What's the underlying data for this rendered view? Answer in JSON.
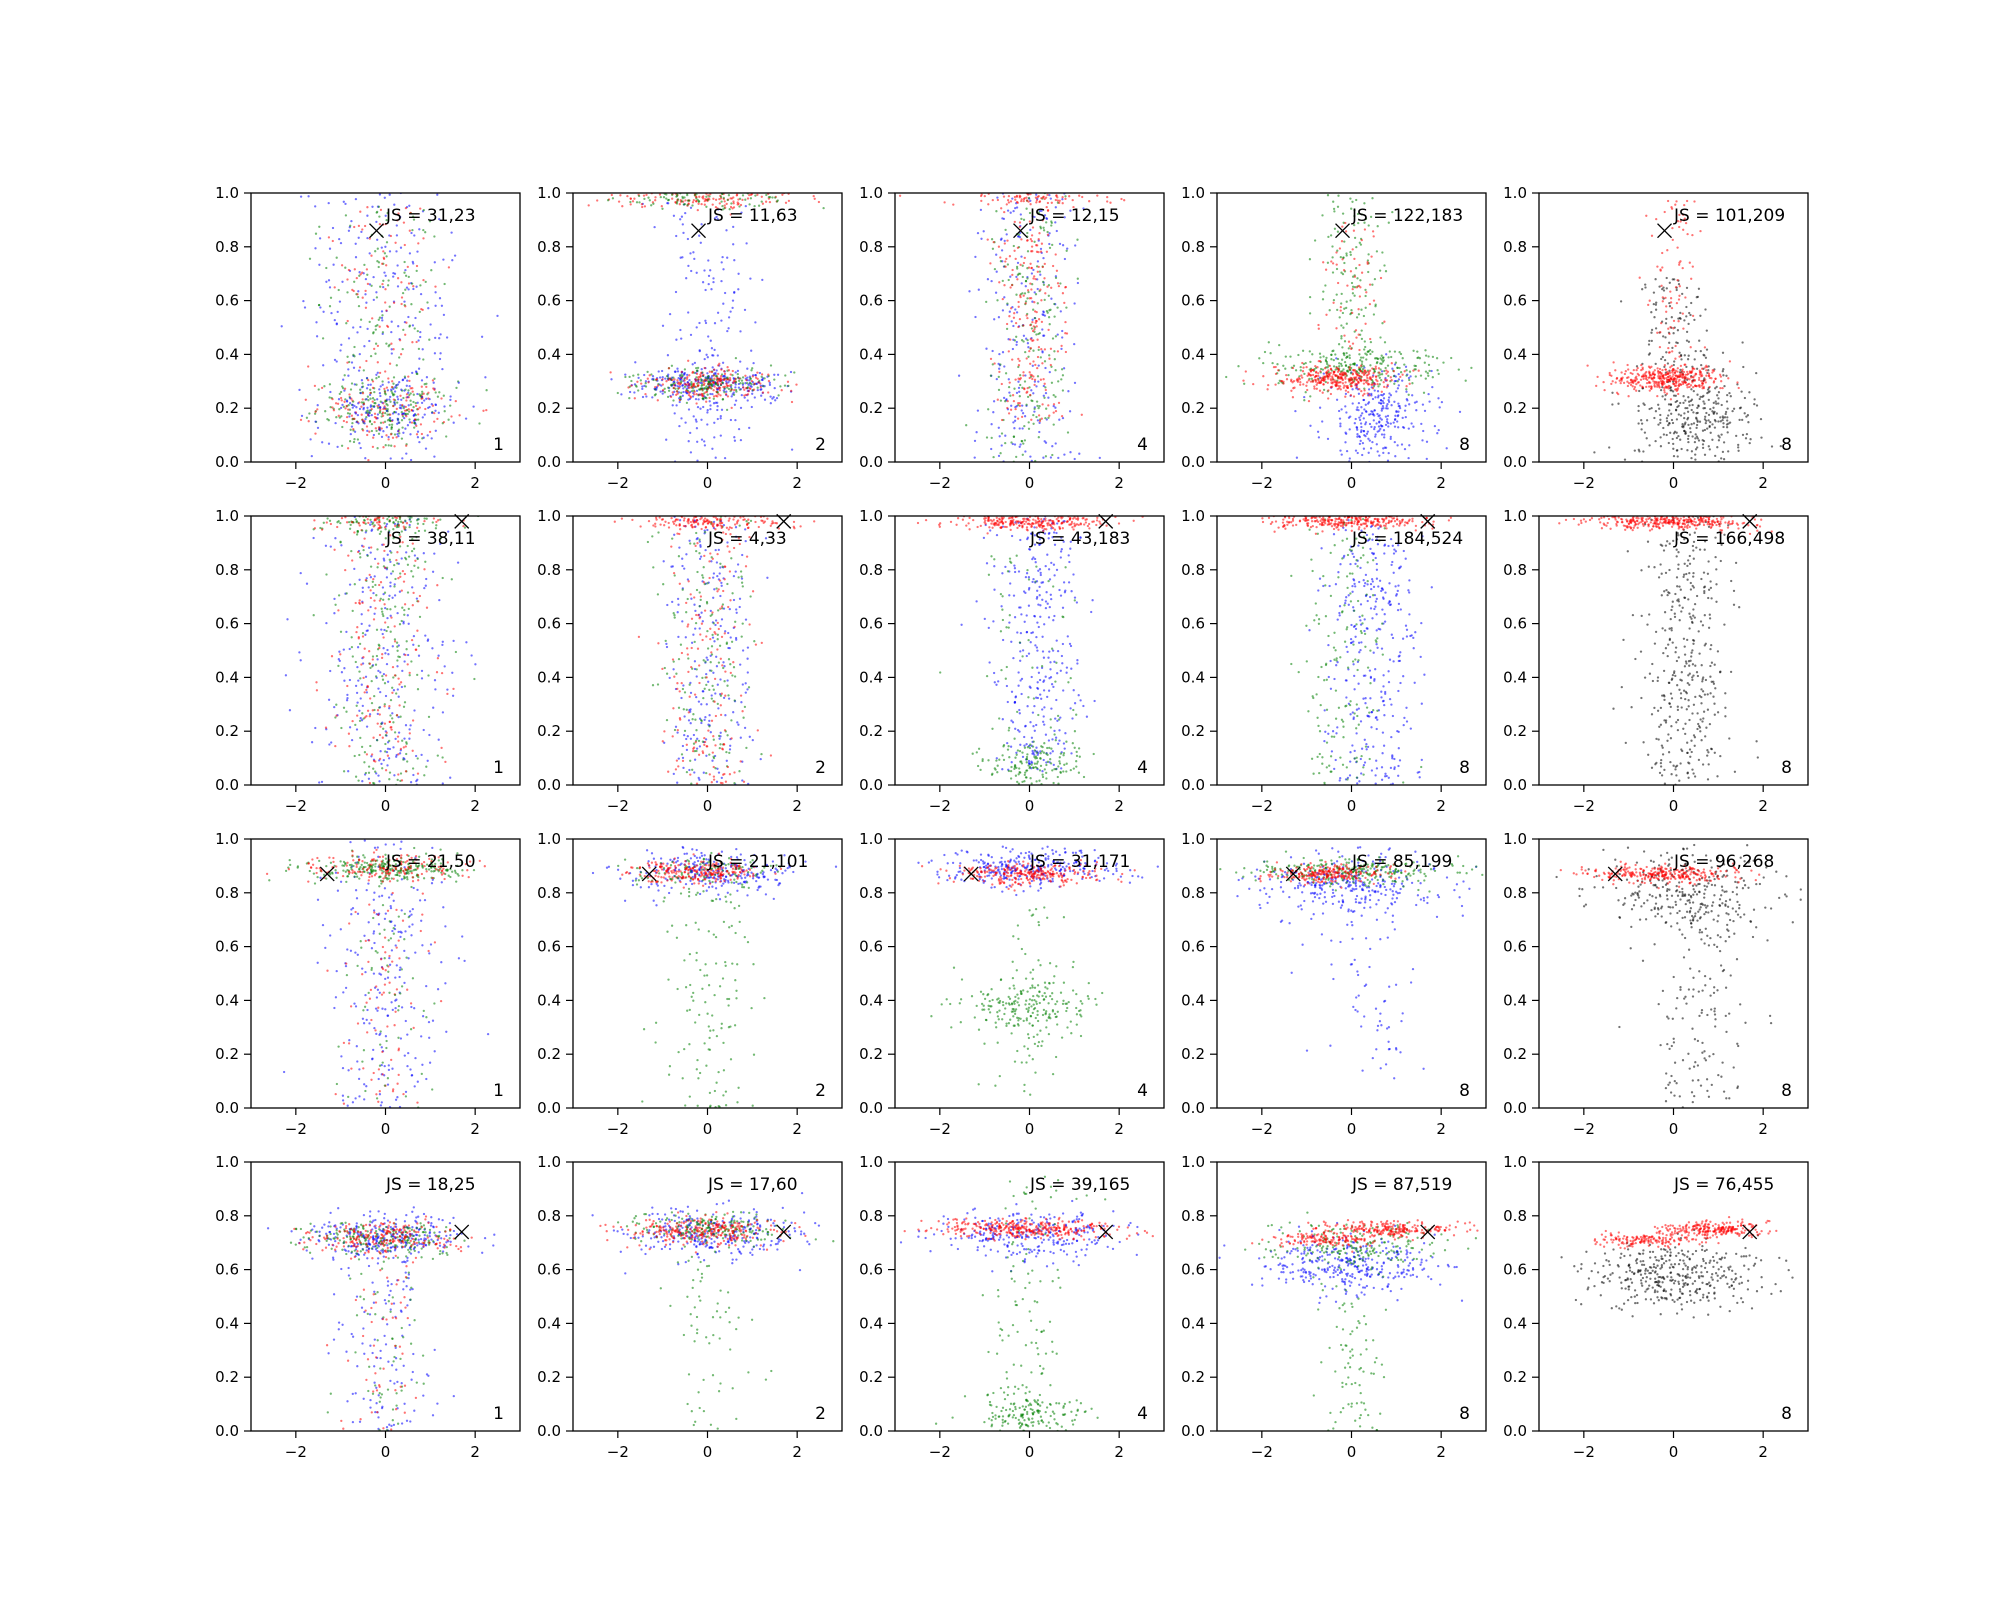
{
  "chart_data": {
    "type": "scatter",
    "grid": false,
    "legend": false,
    "rows": 4,
    "cols": 5,
    "xlim": [
      -3,
      3
    ],
    "ylim": [
      0,
      1
    ],
    "x_ticks": [
      -2,
      0,
      2
    ],
    "y_ticks": [
      0.0,
      0.2,
      0.4,
      0.6,
      0.8,
      1.0
    ],
    "x_tick_labels": [
      "−2",
      "0",
      "2"
    ],
    "y_tick_labels": [
      "0.0",
      "0.2",
      "0.4",
      "0.6",
      "0.8",
      "1.0"
    ],
    "colors": {
      "blue": "#0000ff",
      "green": "#008000",
      "red": "#ff0000",
      "black": "#000000"
    },
    "panels": [
      {
        "row": 0,
        "col": 0,
        "js_label": "JS = 31,23",
        "count_label": "1",
        "marker": {
          "x": -0.2,
          "y": 0.86
        },
        "clusters": [
          {
            "color": "blue",
            "n": 230,
            "cx": 0,
            "sx": 0.9,
            "ymin": 0.0,
            "ymax": 1.0
          },
          {
            "color": "green",
            "n": 160,
            "cx": 0,
            "sx": 0.6,
            "ymin": 0.05,
            "ymax": 0.95
          },
          {
            "color": "red",
            "n": 130,
            "cx": 0,
            "sx": 0.6,
            "ymin": 0.05,
            "ymax": 0.95
          },
          {
            "color": "green",
            "n": 160,
            "cx": 0,
            "sx": 0.75,
            "cy": 0.2,
            "sy": 0.05
          },
          {
            "color": "red",
            "n": 110,
            "cx": 0,
            "sx": 0.75,
            "cy": 0.2,
            "sy": 0.05
          },
          {
            "color": "blue",
            "n": 130,
            "cx": 0,
            "sx": 0.8,
            "cy": 0.2,
            "sy": 0.06
          }
        ]
      },
      {
        "row": 0,
        "col": 1,
        "js_label": "JS = 11,63",
        "count_label": "2",
        "marker": {
          "x": -0.2,
          "y": 0.86
        },
        "clusters": [
          {
            "color": "blue",
            "n": 170,
            "cx": 0,
            "sx": 0.55,
            "ymin": 0.0,
            "ymax": 1.0
          },
          {
            "color": "blue",
            "n": 260,
            "cx": 0,
            "sx": 0.9,
            "cy": 0.29,
            "sy": 0.035
          },
          {
            "color": "green",
            "n": 200,
            "cx": 0,
            "sx": 0.75,
            "cy": 0.29,
            "sy": 0.03
          },
          {
            "color": "red",
            "n": 200,
            "cx": 0,
            "sx": 0.75,
            "cy": 0.29,
            "sy": 0.03
          },
          {
            "color": "red",
            "n": 150,
            "cx": 0,
            "sx": 1.0,
            "cy": 0.98,
            "sy": 0.02
          },
          {
            "color": "green",
            "n": 100,
            "cx": 0,
            "sx": 0.9,
            "cy": 0.98,
            "sy": 0.02
          }
        ]
      },
      {
        "row": 0,
        "col": 2,
        "js_label": "JS = 12,15",
        "count_label": "4",
        "marker": {
          "x": -0.2,
          "y": 0.86
        },
        "clusters": [
          {
            "color": "blue",
            "n": 230,
            "cx": 0,
            "sx": 0.6,
            "ymin": 0.0,
            "ymax": 1.0
          },
          {
            "color": "green",
            "n": 200,
            "cx": 0,
            "sx": 0.45,
            "ymin": 0.0,
            "ymax": 1.0
          },
          {
            "color": "red",
            "n": 200,
            "cx": 0,
            "sx": 0.4,
            "ymin": 0.15,
            "ymax": 0.9
          },
          {
            "color": "red",
            "n": 100,
            "cx": 0,
            "sx": 0.9,
            "cy": 0.98,
            "sy": 0.02
          }
        ]
      },
      {
        "row": 0,
        "col": 3,
        "js_label": "JS = 122,183",
        "count_label": "8",
        "marker": {
          "x": -0.2,
          "y": 0.86
        },
        "clusters": [
          {
            "color": "blue",
            "n": 280,
            "cx": 0.6,
            "sx": 0.6,
            "cy": 0.17,
            "sy": 0.09
          },
          {
            "color": "green",
            "n": 130,
            "cx": 0,
            "sx": 0.4,
            "ymin": 0.4,
            "ymax": 1.0
          },
          {
            "color": "green",
            "n": 260,
            "cx": 0,
            "sx": 0.9,
            "cy": 0.35,
            "sy": 0.04
          },
          {
            "color": "red",
            "n": 330,
            "cx": -0.3,
            "sx": 0.6,
            "cy": 0.31,
            "sy": 0.025
          },
          {
            "color": "red",
            "n": 60,
            "cx": 0,
            "sx": 0.3,
            "ymin": 0.4,
            "ymax": 0.9
          }
        ]
      },
      {
        "row": 0,
        "col": 4,
        "js_label": "JS = 101,209",
        "count_label": "8",
        "marker": {
          "x": -0.2,
          "y": 0.86
        },
        "clusters": [
          {
            "color": "black",
            "n": 330,
            "cx": 0.5,
            "sx": 0.7,
            "cy": 0.17,
            "sy": 0.09
          },
          {
            "color": "black",
            "n": 100,
            "cx": 0,
            "sx": 0.4,
            "ymin": 0.35,
            "ymax": 0.7
          },
          {
            "color": "red",
            "n": 380,
            "cx": -0.2,
            "sx": 0.6,
            "cy": 0.31,
            "sy": 0.025
          },
          {
            "color": "red",
            "n": 80,
            "cx": 0,
            "sx": 0.3,
            "ymin": 0.4,
            "ymax": 1.0
          }
        ]
      },
      {
        "row": 1,
        "col": 0,
        "js_label": "JS = 38,11",
        "count_label": "1",
        "marker": {
          "x": 1.7,
          "y": 0.98
        },
        "clusters": [
          {
            "color": "blue",
            "n": 260,
            "cx": 0,
            "sx": 0.8,
            "ymin": 0.0,
            "ymax": 1.0
          },
          {
            "color": "green",
            "n": 200,
            "cx": 0,
            "sx": 0.6,
            "ymin": 0.0,
            "ymax": 1.0
          },
          {
            "color": "red",
            "n": 160,
            "cx": 0,
            "sx": 0.55,
            "ymin": 0.0,
            "ymax": 1.0
          },
          {
            "color": "green",
            "n": 100,
            "cx": 0,
            "sx": 0.8,
            "cy": 0.98,
            "sy": 0.02
          },
          {
            "color": "red",
            "n": 60,
            "cx": 0,
            "sx": 0.8,
            "cy": 0.98,
            "sy": 0.02
          }
        ]
      },
      {
        "row": 1,
        "col": 1,
        "js_label": "JS = 4,33",
        "count_label": "2",
        "marker": {
          "x": 1.7,
          "y": 0.98
        },
        "clusters": [
          {
            "color": "blue",
            "n": 230,
            "cx": 0,
            "sx": 0.6,
            "ymin": 0.0,
            "ymax": 1.0
          },
          {
            "color": "green",
            "n": 170,
            "cx": 0,
            "sx": 0.5,
            "ymin": 0.0,
            "ymax": 1.0
          },
          {
            "color": "red",
            "n": 170,
            "cx": 0,
            "sx": 0.5,
            "ymin": 0.0,
            "ymax": 1.0
          },
          {
            "color": "red",
            "n": 150,
            "cx": 0,
            "sx": 0.9,
            "cy": 0.98,
            "sy": 0.015
          }
        ]
      },
      {
        "row": 1,
        "col": 2,
        "js_label": "JS = 43,183",
        "count_label": "4",
        "marker": {
          "x": 1.7,
          "y": 0.98
        },
        "clusters": [
          {
            "color": "blue",
            "n": 330,
            "cx": 0.2,
            "sx": 0.5,
            "ymin": 0.05,
            "ymax": 1.0
          },
          {
            "color": "green",
            "n": 160,
            "cx": 0,
            "sx": 0.6,
            "cy": 0.07,
            "sy": 0.05
          },
          {
            "color": "green",
            "n": 60,
            "cx": 0,
            "sx": 0.6,
            "ymin": 0.1,
            "ymax": 1.0
          },
          {
            "color": "red",
            "n": 260,
            "cx": 0,
            "sx": 0.9,
            "cy": 0.98,
            "sy": 0.015
          }
        ]
      },
      {
        "row": 1,
        "col": 3,
        "js_label": "JS = 184,524",
        "count_label": "8",
        "marker": {
          "x": 1.7,
          "y": 0.98
        },
        "clusters": [
          {
            "color": "blue",
            "n": 330,
            "cx": 0.5,
            "sx": 0.5,
            "ymin": 0.0,
            "ymax": 1.0
          },
          {
            "color": "green",
            "n": 160,
            "cx": -0.2,
            "sx": 0.5,
            "ymin": 0.0,
            "ymax": 1.0
          },
          {
            "color": "red",
            "n": 300,
            "cx": 0,
            "sx": 0.9,
            "cy": 0.98,
            "sy": 0.015
          }
        ]
      },
      {
        "row": 1,
        "col": 4,
        "js_label": "JS = 166,498",
        "count_label": "8",
        "marker": {
          "x": 1.7,
          "y": 0.98
        },
        "clusters": [
          {
            "color": "black",
            "n": 380,
            "cx": 0.3,
            "sx": 0.5,
            "ymin": 0.0,
            "ymax": 1.0
          },
          {
            "color": "red",
            "n": 330,
            "cx": 0,
            "sx": 0.9,
            "cy": 0.98,
            "sy": 0.015
          }
        ]
      },
      {
        "row": 2,
        "col": 0,
        "js_label": "JS = 21,50",
        "count_label": "1",
        "marker": {
          "x": -1.3,
          "y": 0.87
        },
        "clusters": [
          {
            "color": "blue",
            "n": 230,
            "cx": 0,
            "sx": 0.7,
            "ymin": 0.0,
            "ymax": 1.0
          },
          {
            "color": "green",
            "n": 260,
            "cx": 0,
            "sx": 0.9,
            "cy": 0.89,
            "sy": 0.025
          },
          {
            "color": "red",
            "n": 160,
            "cx": 0,
            "sx": 0.9,
            "cy": 0.89,
            "sy": 0.025
          },
          {
            "color": "red",
            "n": 80,
            "cx": 0,
            "sx": 0.5,
            "ymin": 0.0,
            "ymax": 0.8
          },
          {
            "color": "green",
            "n": 60,
            "cx": 0,
            "sx": 0.5,
            "ymin": 0.0,
            "ymax": 0.8
          }
        ]
      },
      {
        "row": 2,
        "col": 1,
        "js_label": "JS = 21,101",
        "count_label": "2",
        "marker": {
          "x": -1.3,
          "y": 0.87
        },
        "clusters": [
          {
            "color": "blue",
            "n": 260,
            "cx": 0,
            "sx": 0.9,
            "cy": 0.88,
            "sy": 0.04
          },
          {
            "color": "green",
            "n": 130,
            "cx": 0,
            "sx": 0.5,
            "ymin": 0.0,
            "ymax": 0.85
          },
          {
            "color": "green",
            "n": 100,
            "cx": 0,
            "sx": 0.8,
            "cy": 0.88,
            "sy": 0.025
          },
          {
            "color": "red",
            "n": 230,
            "cx": -0.3,
            "sx": 0.7,
            "cy": 0.88,
            "sy": 0.02
          }
        ]
      },
      {
        "row": 2,
        "col": 2,
        "js_label": "JS = 31,171",
        "count_label": "4",
        "marker": {
          "x": -1.3,
          "y": 0.87
        },
        "clusters": [
          {
            "color": "blue",
            "n": 300,
            "cx": 0,
            "sx": 1.0,
            "cy": 0.89,
            "sy": 0.035
          },
          {
            "color": "green",
            "n": 200,
            "cx": 0,
            "sx": 0.7,
            "cy": 0.38,
            "sy": 0.06
          },
          {
            "color": "green",
            "n": 60,
            "cx": 0,
            "sx": 0.4,
            "ymin": 0.0,
            "ymax": 0.8
          },
          {
            "color": "red",
            "n": 260,
            "cx": 0,
            "sx": 0.8,
            "cy": 0.87,
            "sy": 0.02
          }
        ]
      },
      {
        "row": 2,
        "col": 3,
        "js_label": "JS = 85,199",
        "count_label": "8",
        "marker": {
          "x": -1.3,
          "y": 0.87
        },
        "clusters": [
          {
            "color": "blue",
            "n": 300,
            "cx": 0,
            "sx": 1.0,
            "cy": 0.83,
            "sy": 0.06
          },
          {
            "color": "blue",
            "n": 60,
            "cx": 0.5,
            "sx": 0.5,
            "ymin": 0.1,
            "ymax": 0.7
          },
          {
            "color": "green",
            "n": 260,
            "cx": 0,
            "sx": 1.1,
            "cy": 0.88,
            "sy": 0.025
          },
          {
            "color": "red",
            "n": 230,
            "cx": -0.5,
            "sx": 0.6,
            "cy": 0.87,
            "sy": 0.015
          }
        ]
      },
      {
        "row": 2,
        "col": 4,
        "js_label": "JS = 96,268",
        "count_label": "8",
        "marker": {
          "x": -1.3,
          "y": 0.87
        },
        "clusters": [
          {
            "color": "black",
            "n": 300,
            "cx": 0.3,
            "sx": 1.0,
            "cy": 0.8,
            "sy": 0.08
          },
          {
            "color": "black",
            "n": 130,
            "cx": 0.5,
            "sx": 0.6,
            "ymin": 0.0,
            "ymax": 0.7
          },
          {
            "color": "red",
            "n": 280,
            "cx": -0.3,
            "sx": 0.8,
            "cy": 0.87,
            "sy": 0.015
          }
        ]
      },
      {
        "row": 3,
        "col": 0,
        "js_label": "JS = 18,25",
        "count_label": "1",
        "marker": {
          "x": 1.7,
          "y": 0.74
        },
        "clusters": [
          {
            "color": "blue",
            "n": 260,
            "cx": 0,
            "sx": 0.9,
            "cy": 0.72,
            "sy": 0.04
          },
          {
            "color": "blue",
            "n": 130,
            "cx": 0,
            "sx": 0.6,
            "ymin": 0.0,
            "ymax": 0.7
          },
          {
            "color": "green",
            "n": 200,
            "cx": 0,
            "sx": 0.8,
            "cy": 0.72,
            "sy": 0.03
          },
          {
            "color": "green",
            "n": 60,
            "cx": 0,
            "sx": 0.5,
            "ymin": 0.0,
            "ymax": 0.7
          },
          {
            "color": "red",
            "n": 200,
            "cx": 0,
            "sx": 0.8,
            "cy": 0.72,
            "sy": 0.03
          },
          {
            "color": "red",
            "n": 60,
            "cx": 0,
            "sx": 0.5,
            "ymin": 0.0,
            "ymax": 0.7
          }
        ]
      },
      {
        "row": 3,
        "col": 1,
        "js_label": "JS = 17,60",
        "count_label": "2",
        "marker": {
          "x": 1.7,
          "y": 0.74
        },
        "clusters": [
          {
            "color": "blue",
            "n": 280,
            "cx": 0,
            "sx": 1.0,
            "cy": 0.73,
            "sy": 0.05
          },
          {
            "color": "green",
            "n": 200,
            "cx": 0,
            "sx": 0.9,
            "cy": 0.75,
            "sy": 0.03
          },
          {
            "color": "green",
            "n": 60,
            "cx": 0,
            "sx": 0.5,
            "ymin": 0.0,
            "ymax": 0.65
          },
          {
            "color": "red",
            "n": 260,
            "cx": 0,
            "sx": 0.9,
            "cy": 0.74,
            "sy": 0.025
          }
        ]
      },
      {
        "row": 3,
        "col": 2,
        "js_label": "JS = 39,165",
        "count_label": "4",
        "marker": {
          "x": 1.7,
          "y": 0.74
        },
        "clusters": [
          {
            "color": "blue",
            "n": 280,
            "cx": 0,
            "sx": 1.0,
            "cy": 0.73,
            "sy": 0.05
          },
          {
            "color": "green",
            "n": 160,
            "cx": 0,
            "sx": 0.7,
            "cy": 0.06,
            "sy": 0.04
          },
          {
            "color": "green",
            "n": 100,
            "cx": 0,
            "sx": 0.5,
            "ymin": 0.1,
            "ymax": 0.95
          },
          {
            "color": "red",
            "n": 330,
            "cx": 0,
            "sx": 1.0,
            "cy": 0.75,
            "sy": 0.018
          }
        ]
      },
      {
        "row": 3,
        "col": 3,
        "js_label": "JS = 87,519",
        "count_label": "8",
        "marker": {
          "x": 1.7,
          "y": 0.74
        },
        "clusters": [
          {
            "color": "blue",
            "n": 330,
            "cx": 0,
            "sx": 1.0,
            "cy": 0.62,
            "sy": 0.05
          },
          {
            "color": "green",
            "n": 200,
            "cx": 0,
            "sx": 1.0,
            "cy": 0.69,
            "sy": 0.04
          },
          {
            "color": "green",
            "n": 80,
            "cx": 0,
            "sx": 0.4,
            "ymin": 0.0,
            "ymax": 0.55
          },
          {
            "color": "red",
            "n": 230,
            "cx": 0.8,
            "sx": 0.7,
            "cy": 0.75,
            "sy": 0.015
          },
          {
            "color": "red",
            "n": 130,
            "cx": -0.6,
            "sx": 0.6,
            "cy": 0.71,
            "sy": 0.012
          }
        ]
      },
      {
        "row": 3,
        "col": 4,
        "js_label": "JS = 76,455",
        "count_label": "8",
        "marker": {
          "x": 1.7,
          "y": 0.74
        },
        "clusters": [
          {
            "color": "black",
            "n": 380,
            "cx": 0,
            "sx": 1.0,
            "cy": 0.58,
            "sy": 0.06
          },
          {
            "color": "red",
            "n": 230,
            "cx": 0.9,
            "sx": 0.6,
            "cy": 0.75,
            "sy": 0.015
          },
          {
            "color": "red",
            "n": 150,
            "cx": -0.5,
            "sx": 0.6,
            "cy": 0.71,
            "sy": 0.012
          }
        ]
      }
    ]
  }
}
